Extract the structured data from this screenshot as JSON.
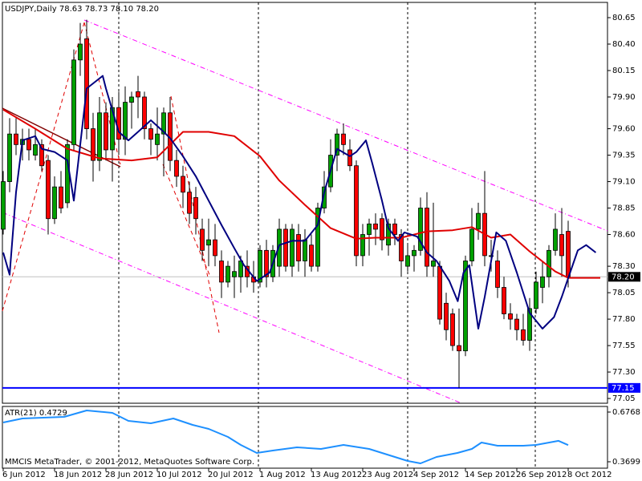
{
  "chart_data": [
    {
      "type": "candlestick",
      "title": "USDJPY,Daily  78.63 78.73 78.10 78.20",
      "x": [
        0,
        1,
        2,
        3,
        4,
        5,
        6,
        7,
        8,
        9,
        10,
        11,
        12,
        13,
        14,
        15,
        16,
        17,
        18,
        19,
        20,
        21,
        22,
        23,
        24,
        25,
        26,
        27,
        28,
        29,
        30,
        31,
        32,
        33,
        34,
        35,
        36,
        37,
        38,
        39,
        40,
        41,
        42,
        43,
        44,
        45,
        46,
        47,
        48,
        49,
        50,
        51,
        52,
        53,
        54,
        55,
        56,
        57,
        58,
        59,
        60,
        61,
        62,
        63,
        64,
        65,
        66,
        67,
        68,
        69,
        70,
        71,
        72,
        73,
        74,
        75,
        76,
        77,
        78,
        79,
        80,
        81,
        82,
        83,
        84,
        85,
        86,
        87,
        88
      ],
      "open": [
        78.65,
        79.1,
        79.55,
        79.45,
        79.5,
        79.35,
        79.45,
        79.3,
        78.75,
        79.05,
        78.9,
        79.45,
        80.25,
        80.45,
        79.6,
        79.3,
        79.75,
        79.4,
        79.8,
        79.5,
        79.85,
        79.95,
        79.9,
        79.6,
        79.45,
        79.55,
        79.75,
        79.3,
        79.15,
        79.0,
        78.95,
        78.65,
        78.5,
        78.55,
        78.35,
        78.15,
        78.2,
        78.2,
        78.3,
        78.2,
        78.15,
        78.45,
        78.2,
        78.3,
        78.65,
        78.3,
        78.6,
        78.35,
        78.5,
        78.3,
        78.85,
        79.05,
        79.35,
        79.55,
        79.4,
        79.25,
        78.4,
        78.6,
        78.7,
        78.75,
        78.5,
        78.7,
        78.6,
        78.3,
        78.4,
        78.45,
        78.85,
        78.3,
        78.3,
        77.95,
        77.85,
        77.55,
        77.5,
        78.35,
        78.65,
        78.8,
        78.4,
        78.35,
        78.1,
        77.85,
        77.8,
        77.7,
        77.6,
        77.9,
        78.1,
        78.2,
        78.45,
        78.6,
        78.63
      ],
      "high": [
        79.2,
        79.7,
        79.7,
        79.6,
        79.6,
        79.6,
        79.5,
        79.35,
        79.15,
        79.2,
        79.5,
        80.35,
        80.6,
        80.63,
        79.75,
        79.9,
        79.85,
        79.9,
        79.95,
        80.0,
        79.95,
        80.1,
        79.95,
        79.65,
        79.8,
        79.8,
        79.9,
        79.4,
        79.25,
        79.1,
        79.05,
        78.75,
        78.75,
        78.7,
        78.45,
        78.35,
        78.4,
        78.4,
        78.45,
        78.35,
        78.5,
        78.55,
        78.5,
        78.75,
        78.7,
        78.7,
        78.7,
        78.65,
        78.6,
        78.9,
        79.2,
        79.5,
        79.6,
        79.65,
        79.5,
        79.3,
        78.7,
        78.75,
        78.8,
        78.8,
        78.75,
        78.75,
        78.65,
        78.5,
        78.5,
        78.95,
        79.0,
        78.9,
        78.35,
        78.05,
        77.9,
        77.9,
        78.4,
        78.85,
        78.9,
        79.2,
        78.55,
        78.45,
        78.2,
        77.95,
        77.85,
        77.85,
        78.0,
        78.25,
        78.35,
        78.5,
        78.8,
        78.85,
        78.73
      ],
      "low": [
        78.6,
        79.0,
        79.35,
        79.3,
        79.3,
        79.3,
        79.2,
        78.6,
        78.7,
        78.8,
        78.85,
        79.4,
        80.1,
        79.5,
        79.1,
        79.2,
        79.3,
        79.1,
        79.35,
        79.35,
        79.6,
        79.7,
        79.5,
        79.35,
        79.3,
        79.15,
        79.2,
        79.05,
        78.85,
        78.7,
        78.6,
        78.35,
        78.3,
        78.3,
        78.0,
        78.1,
        78.0,
        78.05,
        78.1,
        78.05,
        78.1,
        78.1,
        78.15,
        78.2,
        78.25,
        78.2,
        78.25,
        78.2,
        78.25,
        78.25,
        78.8,
        79.0,
        79.2,
        79.35,
        79.2,
        78.3,
        78.3,
        78.4,
        78.5,
        78.45,
        78.4,
        78.5,
        78.2,
        78.25,
        78.25,
        78.4,
        78.2,
        78.2,
        77.75,
        77.6,
        77.5,
        77.15,
        77.45,
        78.3,
        78.55,
        78.3,
        78.25,
        78.0,
        77.8,
        77.7,
        77.6,
        77.55,
        77.5,
        77.85,
        77.95,
        78.1,
        78.4,
        78.2,
        78.1
      ],
      "close": [
        79.1,
        79.55,
        79.45,
        79.5,
        79.4,
        79.45,
        79.25,
        78.75,
        79.05,
        78.85,
        79.45,
        80.25,
        80.4,
        79.6,
        79.3,
        79.75,
        79.4,
        79.8,
        79.5,
        79.85,
        79.9,
        79.9,
        79.6,
        79.5,
        79.55,
        79.75,
        79.3,
        79.15,
        79.0,
        78.8,
        78.75,
        78.45,
        78.55,
        78.4,
        78.15,
        78.3,
        78.25,
        78.35,
        78.2,
        78.15,
        78.45,
        78.2,
        78.45,
        78.65,
        78.3,
        78.65,
        78.35,
        78.55,
        78.3,
        78.85,
        79.05,
        79.35,
        79.55,
        79.45,
        79.25,
        78.4,
        78.6,
        78.7,
        78.65,
        78.55,
        78.7,
        78.6,
        78.35,
        78.4,
        78.45,
        78.85,
        78.3,
        78.35,
        77.8,
        77.7,
        77.55,
        77.5,
        78.35,
        78.65,
        78.8,
        78.4,
        78.4,
        78.1,
        77.85,
        77.8,
        77.7,
        77.6,
        77.9,
        78.15,
        78.2,
        78.45,
        78.65,
        78.4,
        78.2
      ],
      "up_color": "#00a000",
      "down_color": "#ff0000",
      "series": [
        {
          "color": "#e00000",
          "x": [
            0,
            5,
            10,
            15,
            20,
            24,
            28,
            32,
            36,
            40,
            43,
            47,
            51,
            55,
            58,
            62,
            66,
            70,
            73,
            76,
            79,
            82,
            86,
            88,
            93
          ],
          "values": [
            79.78,
            79.6,
            79.41,
            79.32,
            79.3,
            79.33,
            79.57,
            79.57,
            79.53,
            79.34,
            79.11,
            78.88,
            78.66,
            78.56,
            78.57,
            78.57,
            78.63,
            78.64,
            78.67,
            78.57,
            78.6,
            78.44,
            78.25,
            78.19,
            78.19
          ]
        },
        {
          "color": "#000080",
          "x": [
            0,
            1,
            2,
            3,
            5,
            6,
            8,
            10,
            11,
            13,
            15.5,
            16,
            18,
            19.5,
            21,
            23,
            25,
            26,
            28,
            30,
            32,
            34,
            36,
            37.5,
            39.5,
            41.5,
            43,
            45,
            47,
            49,
            50,
            52,
            54,
            55,
            56.5,
            57.5,
            59,
            60,
            61.5,
            62.5,
            64.5,
            66,
            67.5,
            69.5,
            70.8,
            71.7,
            72.6,
            74,
            75,
            76.8,
            78.3,
            80,
            82,
            84,
            85.8,
            87,
            88.3,
            89.5,
            90.8,
            92.3
          ],
          "values": [
            78.43,
            78.22,
            79.0,
            79.49,
            79.53,
            79.41,
            79.38,
            79.3,
            78.92,
            79.98,
            80.1,
            79.98,
            79.57,
            79.49,
            79.57,
            79.68,
            79.57,
            79.51,
            79.34,
            79.15,
            78.92,
            78.69,
            78.47,
            78.31,
            78.16,
            78.24,
            78.5,
            78.54,
            78.54,
            78.69,
            79.0,
            79.41,
            79.34,
            79.38,
            79.49,
            79.27,
            78.92,
            78.66,
            78.54,
            78.62,
            78.58,
            78.43,
            78.35,
            78.16,
            77.97,
            78.24,
            78.31,
            77.71,
            78.01,
            78.62,
            78.54,
            78.24,
            77.86,
            77.71,
            77.82,
            78.01,
            78.24,
            78.45,
            78.5,
            78.43
          ]
        }
      ],
      "hlines": [
        {
          "value": 78.2,
          "label": "78.20",
          "color": "#c0c0c0",
          "label_bg": "#000000"
        },
        {
          "value": 77.15,
          "label": "77.15",
          "color": "#0000ff",
          "label_bg": "#0000ff"
        }
      ],
      "xlim": [
        -0.125,
        94.125
      ],
      "xticks": [
        {
          "value": 0,
          "label": "6 Jun 2012"
        },
        {
          "value": 8,
          "label": "18 Jun 2012"
        },
        {
          "value": 16,
          "label": "28 Jun 2012"
        },
        {
          "value": 24,
          "label": "10 Jul 2012"
        },
        {
          "value": 32,
          "label": "20 Jul 2012"
        },
        {
          "value": 40,
          "label": "1 Aug 2012"
        },
        {
          "value": 48,
          "label": "13 Aug 2012"
        },
        {
          "value": 56,
          "label": "23 Aug 2012"
        },
        {
          "value": 64,
          "label": "4 Sep 2012"
        },
        {
          "value": 72,
          "label": "14 Sep 2012"
        },
        {
          "value": 80,
          "label": "26 Sep 2012"
        },
        {
          "value": 88,
          "label": "8 Oct 2012"
        }
      ],
      "ylim": [
        77.005,
        80.794
      ],
      "yticks": [
        80.65,
        {
          "value": 80.4,
          "label": "80.40"
        },
        80.15,
        {
          "value": 79.9,
          "label": "79.90"
        },
        {
          "value": 79.6,
          "label": "79.60"
        },
        79.35,
        {
          "value": 79.1,
          "label": "79.10"
        },
        78.85,
        {
          "value": 78.6,
          "label": "78.60"
        },
        {
          "value": 78.3,
          "label": "78.30"
        },
        78.05,
        {
          "value": 77.8,
          "label": "77.80"
        },
        77.55,
        {
          "value": 77.3,
          "label": "77.30"
        },
        77.05
      ]
    },
    {
      "type": "line",
      "title": "ATR(21) 0.4729",
      "annotation": "MMCIS MetaTrader, © 2001-2012, MetaQuotes Software Corp.",
      "series": [
        {
          "color": "#1e90ff",
          "x": [
            0,
            3,
            9.5,
            13,
            17,
            19.5,
            23,
            26.5,
            29.5,
            32,
            35,
            37,
            39.5,
            42,
            45.75,
            49.5,
            53,
            57,
            61,
            63,
            65,
            67.5,
            70.75,
            73,
            74.5,
            77,
            81,
            83,
            86.5,
            88
          ],
          "values": [
            0.6125,
            0.6372,
            0.6471,
            0.6867,
            0.6718,
            0.6223,
            0.6075,
            0.6372,
            0.5976,
            0.5729,
            0.5233,
            0.4738,
            0.4243,
            0.4392,
            0.459,
            0.4491,
            0.4738,
            0.4491,
            0.3996,
            0.3748,
            0.36,
            0.3996,
            0.4243,
            0.4491,
            0.4887,
            0.4689,
            0.4689,
            0.4738,
            0.499,
            0.4729
          ]
        }
      ],
      "xlim": [
        -0.125,
        94.125
      ],
      "ylim": [
        0.3303,
        0.7115
      ],
      "yticks": [
        0.6768,
        0.3699
      ]
    }
  ]
}
